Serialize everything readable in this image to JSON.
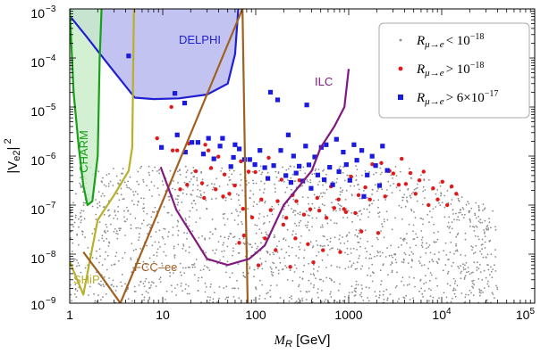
{
  "chart_data": {
    "type": "scatter",
    "xlabel": "M_R [GeV]",
    "ylabel": "|V_e2|^2",
    "x_scale": "log",
    "y_scale": "log",
    "xlim": [
      1,
      100000
    ],
    "ylim": [
      1e-09,
      0.001
    ],
    "grid": false,
    "legend_placement": "top-right",
    "x_ticks": [
      {
        "value": 1,
        "label": "1"
      },
      {
        "value": 10,
        "label": "10"
      },
      {
        "value": 100,
        "label": "100"
      },
      {
        "value": 1000,
        "label": "1000"
      },
      {
        "value": 10000,
        "label": "10^4"
      },
      {
        "value": 100000,
        "label": "10^5"
      }
    ],
    "y_ticks": [
      {
        "value": 1e-09,
        "label": "10^-9"
      },
      {
        "value": 1e-08,
        "label": "10^-8"
      },
      {
        "value": 1e-07,
        "label": "10^-7"
      },
      {
        "value": 1e-06,
        "label": "10^-6"
      },
      {
        "value": 1e-05,
        "label": "10^-5"
      },
      {
        "value": 0.0001,
        "label": "10^-4"
      },
      {
        "value": 0.001,
        "label": "10^-3"
      }
    ],
    "legend": [
      {
        "label": "R_{μ→e} < 10^-18",
        "color": "#8a8a8a",
        "marker": "dot"
      },
      {
        "label": "R_{μ→e} > 10^-18",
        "color": "#e0191a",
        "marker": "circle"
      },
      {
        "label": "R_{μ→e} > 6×10^-17",
        "color": "#1a1ae0",
        "marker": "square"
      }
    ],
    "regions": [
      {
        "name": "DELPHI",
        "color": "#2020d0",
        "fill": "#b8b8f0",
        "boundary": [
          [
            1,
            0.00072
          ],
          [
            1.5,
            0.00028
          ],
          [
            2.2,
            0.00011
          ],
          [
            3.2,
            4.5e-05
          ],
          [
            5,
            1.55e-05
          ],
          [
            8,
            1.45e-05
          ],
          [
            15,
            1.5e-05
          ],
          [
            30,
            1.8e-05
          ],
          [
            50,
            3e-05
          ],
          [
            60,
            0.00012
          ],
          [
            65,
            0.001
          ]
        ]
      },
      {
        "name": "CHARM",
        "color": "#18a018",
        "fill": "#c8ecc8",
        "boundary": [
          [
            1,
            0.001
          ],
          [
            1.1,
            2e-05
          ],
          [
            1.25,
            1.5e-06
          ],
          [
            1.4,
            2.5e-07
          ],
          [
            1.55,
            1e-07
          ],
          [
            1.75,
            1.2e-07
          ],
          [
            2,
            1e-06
          ],
          [
            2.1,
            0.0001
          ],
          [
            2.2,
            0.001
          ]
        ]
      },
      {
        "name": "SHiP",
        "color": "#b8b02a",
        "boundary": [
          [
            1,
            7e-09
          ],
          [
            1.4,
            1.5e-09
          ],
          [
            2,
            5e-08
          ],
          [
            3,
            1.6e-07
          ],
          [
            4.3,
            5e-07
          ],
          [
            4.7,
            1.5e-06
          ],
          [
            4.9,
            0.001
          ]
        ]
      },
      {
        "name": "FCC-ee",
        "color": "#a06020",
        "boundary": [
          [
            1.4,
            1.1e-08
          ],
          [
            2.2,
            3.5e-09
          ],
          [
            3.5,
            1e-09
          ],
          [
            72,
            0.001
          ],
          [
            78,
            1e-07
          ],
          [
            82,
            1e-09
          ]
        ]
      },
      {
        "name": "ILC",
        "color": "#801a80",
        "boundary": [
          [
            9.5,
            6e-07
          ],
          [
            14,
            8e-08
          ],
          [
            30,
            8e-09
          ],
          [
            50,
            6e-09
          ],
          [
            85,
            8e-09
          ],
          [
            125,
            1.5e-08
          ],
          [
            200,
            1e-07
          ],
          [
            400,
            5e-07
          ],
          [
            500,
            1.5e-06
          ],
          [
            700,
            4e-06
          ],
          [
            900,
            1e-05
          ],
          [
            1000,
            6e-05
          ]
        ]
      }
    ],
    "series": [
      {
        "marker": "circle",
        "color": "#e0191a",
        "points": [
          [
            12.4,
            1e-05
          ],
          [
            8.7,
            2.3e-06
          ],
          [
            12.8,
            1.3e-06
          ],
          [
            14.3,
            1.3e-06
          ],
          [
            15.4,
            2.1e-07
          ],
          [
            18.3,
            2.6e-07
          ],
          [
            19.1,
            1.8e-06
          ],
          [
            22.7,
            4.9e-07
          ],
          [
            26.5,
            2.8e-07
          ],
          [
            27.9,
            1.4e-07
          ],
          [
            28.7,
            1.7e-06
          ],
          [
            31,
            1.3e-06
          ],
          [
            33.1,
            5.7e-07
          ],
          [
            37.1,
            2.1e-07
          ],
          [
            39.6,
            9.7e-07
          ],
          [
            44.6,
            1.5e-07
          ],
          [
            46.2,
            4.2e-07
          ],
          [
            52,
            1.7e-07
          ],
          [
            59.6,
            2.5e-07
          ],
          [
            66.4,
            1.7e-08
          ],
          [
            69.2,
            7.8e-07
          ],
          [
            73,
            8.4e-08
          ],
          [
            74.8,
            2.4e-08
          ],
          [
            83.7,
            4.8e-07
          ],
          [
            91.6,
            5.6e-08
          ],
          [
            99.1,
            4.7e-07
          ],
          [
            107,
            5.9e-09
          ],
          [
            115,
            1.3e-07
          ],
          [
            126,
            2.1e-08
          ],
          [
            138,
            9.2e-07
          ],
          [
            145,
            7.9e-08
          ],
          [
            164,
            1.2e-08
          ],
          [
            172,
            1.2e-07
          ],
          [
            189,
            3.3e-07
          ],
          [
            198,
            4e-08
          ],
          [
            213,
            5.5e-08
          ],
          [
            235,
            5.5e-09
          ],
          [
            249,
            1.6e-07
          ],
          [
            267,
            2.1e-08
          ],
          [
            274,
            1.2e-07
          ],
          [
            295,
            3.2e-07
          ],
          [
            330,
            6.4e-08
          ],
          [
            364,
            1.6e-08
          ],
          [
            386,
            8.2e-08
          ],
          [
            417,
            6.8e-09
          ],
          [
            459,
            1.4e-07
          ],
          [
            483,
            7.7e-08
          ],
          [
            529,
            1.2e-08
          ],
          [
            576,
            5.5e-08
          ],
          [
            645,
            2.4e-07
          ],
          [
            698,
            8.7e-08
          ],
          [
            778,
            1.3e-07
          ],
          [
            810,
            1.1e-08
          ],
          [
            889,
            8.3e-08
          ],
          [
            934,
            7.2e-08
          ],
          [
            1060,
            3.8e-07
          ],
          [
            1179,
            6.9e-08
          ],
          [
            1276,
            1.6e-07
          ],
          [
            1369,
            2.9e-08
          ],
          [
            1508,
            2.3e-07
          ],
          [
            1690,
            1.3e-07
          ],
          [
            1796,
            6.8e-07
          ],
          [
            2078,
            2.7e-08
          ],
          [
            2242,
            7.2e-07
          ],
          [
            2462,
            1.5e-07
          ],
          [
            2746,
            5e-07
          ],
          [
            3016,
            4.4e-07
          ],
          [
            3444,
            2.6e-07
          ],
          [
            3705,
            8.8e-07
          ],
          [
            4113,
            2.7e-07
          ],
          [
            4609,
            4.5e-07
          ],
          [
            5233,
            1.7e-07
          ],
          [
            5756,
            3.2e-07
          ],
          [
            6393,
            4.8e-07
          ],
          [
            7228,
            1e-07
          ],
          [
            8081,
            2.2e-07
          ],
          [
            9051,
            1.3e-07
          ],
          [
            10187,
            3e-07
          ],
          [
            11471,
            1e-07
          ],
          [
            12776,
            2.4e-07
          ],
          [
            14347,
            1.7e-07
          ]
        ]
      },
      {
        "marker": "square",
        "color": "#1a1ae0",
        "points": [
          [
            4.3,
            0.00011
          ],
          [
            13.5,
            1.9e-05
          ],
          [
            17.2,
            1.2e-05
          ],
          [
            9.7,
            1.5e-06
          ],
          [
            14.3,
            2.7e-06
          ],
          [
            17.5,
            1.2e-06
          ],
          [
            20.6,
            1.9e-06
          ],
          [
            23.9,
            1.9e-06
          ],
          [
            27.4,
            1.1e-06
          ],
          [
            31.1,
            2.3e-06
          ],
          [
            35.5,
            8.8e-07
          ],
          [
            41.3,
            1.6e-06
          ],
          [
            44,
            2.3e-06
          ],
          [
            54,
            6.1e-07
          ],
          [
            57.6,
            9.4e-07
          ],
          [
            60,
            1.7e-06
          ],
          [
            66.5,
            1.4e-06
          ],
          [
            75.6,
            8.5e-07
          ],
          [
            86.2,
            8.5e-07
          ],
          [
            98,
            6.7e-07
          ],
          [
            111,
            1.3e-06
          ],
          [
            125,
            5.8e-07
          ],
          [
            135,
            3.5e-07
          ],
          [
            144,
            2e-05
          ],
          [
            156,
            6.4e-07
          ],
          [
            172,
            1.4e-05
          ],
          [
            186,
            1.3e-06
          ],
          [
            211,
            4e-07
          ],
          [
            224,
            2.7e-06
          ],
          [
            239,
            2.9e-07
          ],
          [
            255,
            1e-06
          ],
          [
            272,
            4.5e-07
          ],
          [
            293,
            6.2e-07
          ],
          [
            321,
            3.1e-07
          ],
          [
            344,
            1.6e-06
          ],
          [
            354,
            1.1e-05
          ],
          [
            373,
            6.6e-07
          ],
          [
            394,
            2.2e-07
          ],
          [
            431,
            9.6e-07
          ],
          [
            465,
            4.1e-07
          ],
          [
            507,
            1.5e-06
          ],
          [
            545,
            3.3e-07
          ],
          [
            572,
            1.7e-06
          ],
          [
            624,
            5.9e-07
          ],
          [
            673,
            2.6e-07
          ],
          [
            738,
            2.2e-06
          ],
          [
            785,
            4.8e-07
          ],
          [
            874,
            1.2e-06
          ],
          [
            942,
            6.7e-07
          ],
          [
            1029,
            3.2e-07
          ],
          [
            1140,
            1.7e-06
          ],
          [
            1223,
            8.2e-07
          ],
          [
            1383,
            1.3e-06
          ],
          [
            1458,
            1.5e-07
          ],
          [
            1583,
            4.1e-07
          ],
          [
            1785,
            9.9e-07
          ],
          [
            1949,
            6.4e-07
          ],
          [
            2145,
            2.5e-07
          ],
          [
            2307,
            1.6e-06
          ],
          [
            2598,
            5.1e-07
          ]
        ]
      }
    ],
    "background_note_color": "#8a8a8a"
  },
  "labels": {
    "delphi": "DELPHI",
    "charm": "CHARM",
    "ship": "SHiP",
    "fcc": "FCC–ee",
    "ilc": "ILC",
    "xlabel_main": "M",
    "xlabel_sub": "R",
    "xlabel_unit": " [GeV]",
    "ylabel_main": "|V",
    "ylabel_sub": "e2",
    "ylabel_tail": "|",
    "ylabel_pow": "2",
    "legend1_cond": "< 10",
    "legend1_exp": "−18",
    "legend2_cond": "> 10",
    "legend2_exp": "−18",
    "legend3_cond": "> 6×10",
    "legend3_exp": "−17",
    "legend_R": "R",
    "legend_sub": "μ→e"
  }
}
